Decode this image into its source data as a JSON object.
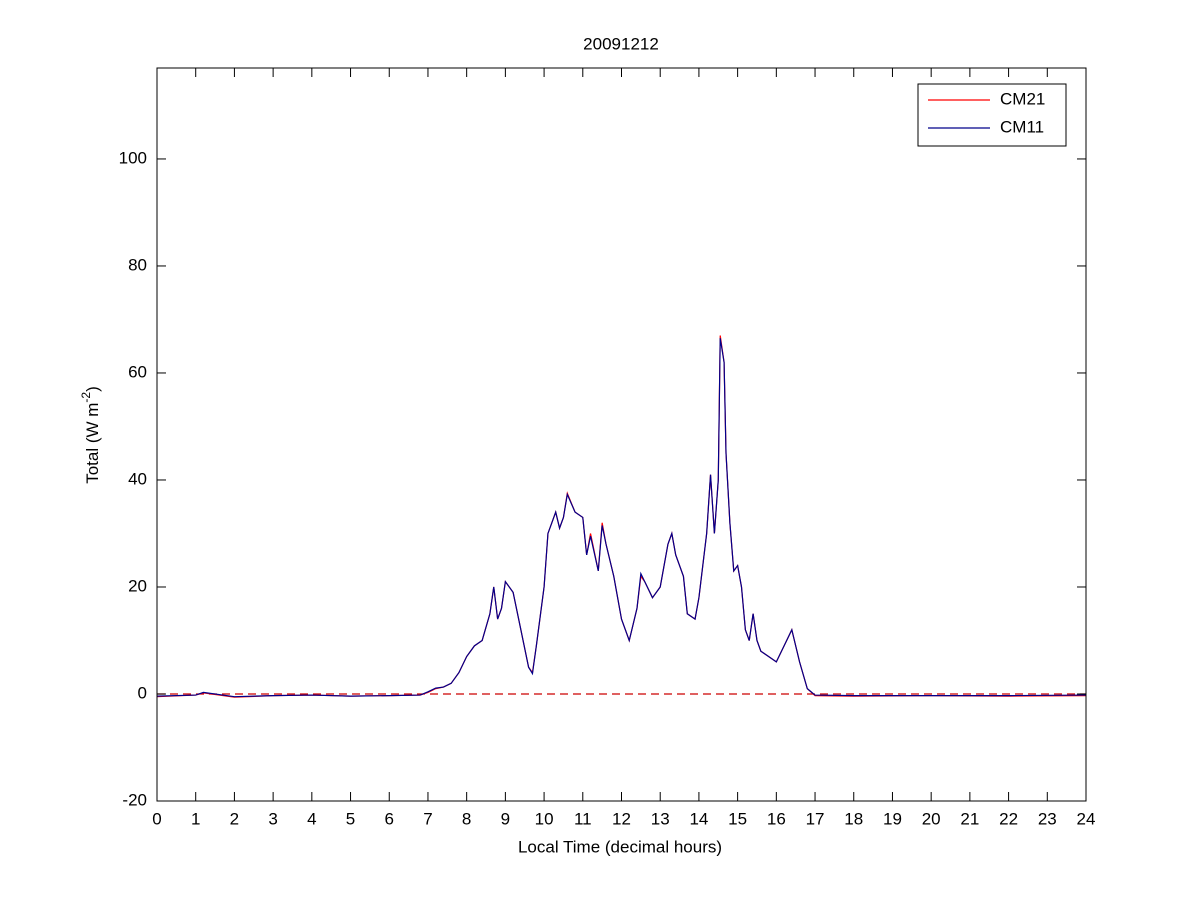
{
  "chart_data": {
    "type": "line",
    "title": "20091212",
    "xlabel": "Local Time (decimal hours)",
    "ylabel": {
      "text": "Total (W m",
      "sup": "-2",
      "tail": ")"
    },
    "x": [
      0,
      1,
      1.2,
      2,
      3,
      4,
      5,
      6,
      6.8,
      7,
      7.2,
      7.4,
      7.6,
      7.8,
      8.0,
      8.2,
      8.4,
      8.6,
      8.7,
      8.8,
      8.9,
      9.0,
      9.2,
      9.4,
      9.6,
      9.7,
      9.8,
      10.0,
      10.1,
      10.2,
      10.3,
      10.4,
      10.5,
      10.6,
      10.8,
      11.0,
      11.1,
      11.2,
      11.4,
      11.5,
      11.6,
      11.8,
      12.0,
      12.2,
      12.4,
      12.5,
      12.6,
      12.8,
      13.0,
      13.2,
      13.3,
      13.4,
      13.6,
      13.7,
      13.9,
      14.0,
      14.2,
      14.3,
      14.4,
      14.5,
      14.55,
      14.65,
      14.7,
      14.8,
      14.9,
      15.0,
      15.1,
      15.2,
      15.3,
      15.4,
      15.5,
      15.6,
      15.8,
      16.0,
      16.2,
      16.4,
      16.6,
      16.8,
      17.0,
      18,
      20,
      22,
      24
    ],
    "series": [
      {
        "name": "CM21",
        "color": "#ff0000",
        "values": [
          -0.5,
          -0.2,
          0.2,
          -0.6,
          -0.3,
          -0.2,
          -0.4,
          -0.3,
          -0.2,
          0.3,
          1.0,
          1.3,
          2,
          4,
          7,
          9,
          10,
          15,
          20,
          14,
          16,
          21,
          19,
          12,
          5,
          4,
          9,
          20,
          30,
          32,
          34,
          31,
          33,
          37.5,
          34,
          33,
          26,
          30,
          23,
          32,
          28,
          22,
          14,
          10,
          16,
          22,
          21,
          18,
          20,
          28,
          30,
          26,
          22,
          15,
          14,
          18,
          30,
          41,
          30,
          40,
          67,
          62,
          45,
          32,
          23,
          24,
          20,
          12,
          10,
          15,
          10,
          8,
          7,
          6,
          9,
          12,
          6,
          1,
          -0.3,
          -0.4,
          -0.3,
          -0.4,
          -0.3
        ]
      },
      {
        "name": "CM11",
        "color": "#00008b",
        "values": [
          -0.4,
          -0.2,
          0.3,
          -0.5,
          -0.3,
          -0.2,
          -0.4,
          -0.3,
          -0.2,
          0.4,
          1.1,
          1.3,
          2,
          4,
          7,
          9,
          10,
          15,
          20,
          14,
          16,
          21,
          19,
          12,
          5,
          3.8,
          9,
          20,
          30,
          32,
          34,
          31,
          33,
          37.3,
          34,
          33,
          26,
          29.5,
          23,
          31.5,
          28,
          22,
          14,
          10,
          16,
          22.5,
          21,
          18,
          20,
          28,
          30,
          26,
          22,
          15,
          14,
          18,
          30,
          41,
          30,
          40,
          66.5,
          62,
          45,
          32,
          23,
          24,
          20,
          12,
          10,
          15,
          10,
          8,
          7,
          6,
          9,
          12,
          6,
          1,
          -0.2,
          -0.3,
          -0.3,
          -0.3,
          -0.2
        ]
      }
    ],
    "xlim": [
      0,
      24
    ],
    "xticks": [
      0,
      1,
      2,
      3,
      4,
      5,
      6,
      7,
      8,
      9,
      10,
      11,
      12,
      13,
      14,
      15,
      16,
      17,
      18,
      19,
      20,
      21,
      22,
      23,
      24
    ],
    "ylim": [
      -20,
      117
    ],
    "yticks": [
      -20,
      0,
      20,
      40,
      60,
      80,
      100
    ],
    "reference_line": {
      "value": 0,
      "color": "#cc0000",
      "dashed": true
    },
    "legend": "upper right",
    "grid": false
  }
}
